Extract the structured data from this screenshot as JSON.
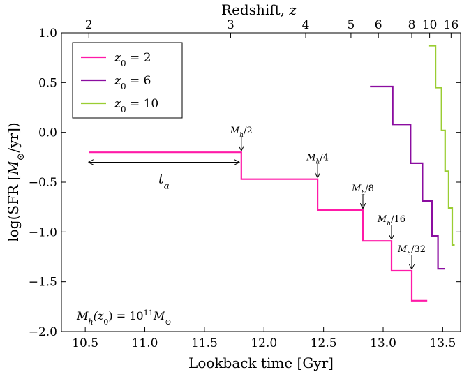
{
  "chart_data": {
    "type": "line",
    "step": true,
    "xlabel": "Lookback time [Gyr]",
    "ylabel": "log(SFR [M⊙/yr])",
    "x2label": "Redshift, z",
    "xlim": [
      10.3,
      13.65
    ],
    "ylim": [
      -2.0,
      1.0
    ],
    "xticks": [
      10.5,
      11.0,
      11.5,
      12.0,
      12.5,
      13.0,
      13.5
    ],
    "xtick_labels": [
      "10.5",
      "11.0",
      "11.5",
      "12.0",
      "12.5",
      "13.0",
      "13.5"
    ],
    "yticks": [
      -2.0,
      -1.5,
      -1.0,
      -0.5,
      0.0,
      0.5,
      1.0
    ],
    "ytick_labels": [
      "−2.0",
      "−1.5",
      "−1.0",
      "−0.5",
      "0.0",
      "0.5",
      "1.0"
    ],
    "x2ticks": [
      {
        "label": "2",
        "t": 10.53
      },
      {
        "label": "3",
        "t": 11.72
      },
      {
        "label": "4",
        "t": 12.35
      },
      {
        "label": "5",
        "t": 12.73
      },
      {
        "label": "6",
        "t": 12.96
      },
      {
        "label": "8",
        "t": 13.24
      },
      {
        "label": "10",
        "t": 13.39
      },
      {
        "label": "16",
        "t": 13.57
      }
    ],
    "grid": false,
    "legend_position": "top-left",
    "series": [
      {
        "name": "z₀ = 2",
        "color": "#ff1aa8",
        "x": [
          10.53,
          11.81,
          11.81,
          12.45,
          12.45,
          12.83,
          12.83,
          13.07,
          13.07,
          13.24,
          13.24,
          13.37
        ],
        "y": [
          -0.2,
          -0.2,
          -0.47,
          -0.47,
          -0.78,
          -0.78,
          -1.09,
          -1.09,
          -1.39,
          -1.39,
          -1.69,
          -1.69
        ]
      },
      {
        "name": "z₀ = 6",
        "color": "#8b0da0",
        "x": [
          12.89,
          13.08,
          13.08,
          13.23,
          13.23,
          13.33,
          13.33,
          13.41,
          13.41,
          13.46,
          13.46,
          13.52
        ],
        "y": [
          0.46,
          0.46,
          0.08,
          0.08,
          -0.31,
          -0.31,
          -0.69,
          -0.69,
          -1.04,
          -1.04,
          -1.37,
          -1.37
        ]
      },
      {
        "name": "z₀ = 10",
        "color": "#9acd32",
        "x": [
          13.38,
          13.44,
          13.44,
          13.49,
          13.49,
          13.52,
          13.52,
          13.55,
          13.55,
          13.58,
          13.58,
          13.6
        ],
        "y": [
          0.87,
          0.87,
          0.45,
          0.45,
          0.02,
          0.02,
          -0.39,
          -0.39,
          -0.76,
          -0.76,
          -1.13,
          -1.13
        ]
      }
    ],
    "annotations": [
      {
        "text": "Mh/2",
        "x": 11.81,
        "y": -0.2
      },
      {
        "text": "Mh/4",
        "x": 12.45,
        "y": -0.47
      },
      {
        "text": "Mh/8",
        "x": 12.83,
        "y": -0.78
      },
      {
        "text": "Mh/16",
        "x": 13.07,
        "y": -1.09
      },
      {
        "text": "Mh/32",
        "x": 13.24,
        "y": -1.39
      }
    ],
    "interval_label": "ta",
    "interval": {
      "x1": 10.53,
      "x2": 11.79,
      "y": -0.3
    },
    "note": "Mh(z0) = 10^11 M⊙"
  }
}
